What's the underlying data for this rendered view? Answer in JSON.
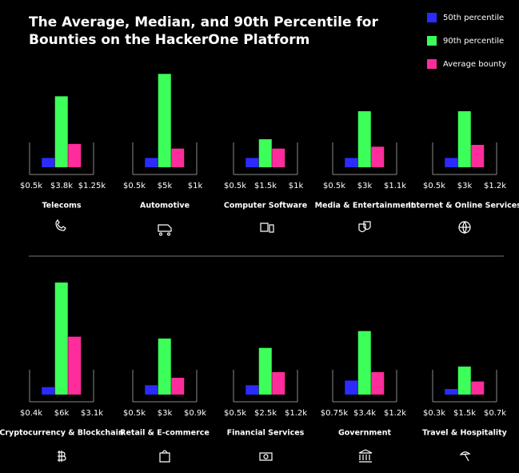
{
  "chart_data": {
    "type": "bar",
    "title": [
      "The Average, Median, and 90th Percentile for",
      "Bounties on the HackerOne Platform"
    ],
    "categories": [
      "Telecoms",
      "Automotive",
      "Computer Software",
      "Media & Entertainment",
      "Internet & Online Services",
      "Cryptocurrency & Blockchain",
      "Retail & E-commerce",
      "Financial Services",
      "Government",
      "Travel & Hospitality"
    ],
    "series": [
      {
        "name": "50th percentile",
        "color": "#2b2bff",
        "values": [
          0.5,
          0.5,
          0.5,
          0.5,
          0.5,
          0.4,
          0.5,
          0.5,
          0.75,
          0.3
        ],
        "value_labels": [
          "$0.5k",
          "$0.5k",
          "$0.5k",
          "$0.5k",
          "$0.5k",
          "$0.4k",
          "$0.5k",
          "$0.5k",
          "$0.75k",
          "$0.3k"
        ]
      },
      {
        "name": "90th percentile",
        "color": "#3dff5a",
        "values": [
          3.8,
          5,
          1.5,
          3,
          3,
          6,
          3,
          2.5,
          3.4,
          1.5
        ],
        "value_labels": [
          "$3.8k",
          "$5k",
          "$1.5k",
          "$3k",
          "$3k",
          "$6k",
          "$3k",
          "$2.5k",
          "$3.4k",
          "$1.5k"
        ]
      },
      {
        "name": "Average bounty",
        "color": "#ff2d9b",
        "values": [
          1.25,
          1,
          1,
          1.1,
          1.2,
          3.1,
          0.9,
          1.2,
          1.2,
          0.7
        ],
        "value_labels": [
          "$1.25k",
          "$1k",
          "$1k",
          "$1.1k",
          "$1.2k",
          "$3.1k",
          "$0.9k",
          "$1.2k",
          "$1.2k",
          "$0.7k"
        ]
      }
    ]
  }
}
